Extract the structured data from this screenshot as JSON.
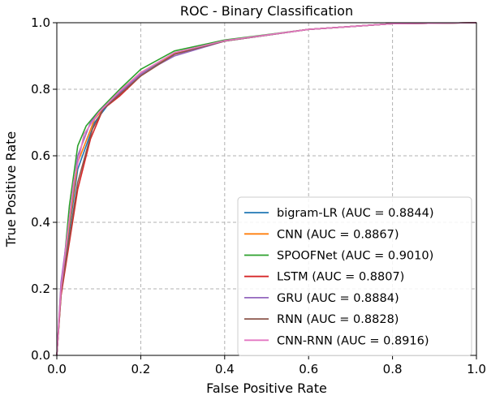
{
  "chart_data": {
    "type": "line",
    "title": "ROC - Binary Classification",
    "xlabel": "False Positive Rate",
    "ylabel": "True Positive Rate",
    "xlim": [
      0.0,
      1.0
    ],
    "ylim": [
      0.0,
      1.0
    ],
    "xticks": [
      "0.0",
      "0.2",
      "0.4",
      "0.6",
      "0.8",
      "1.0"
    ],
    "yticks": [
      "0.0",
      "0.2",
      "0.4",
      "0.6",
      "0.8",
      "1.0"
    ],
    "grid": true,
    "legend_position": "lower-right",
    "series": [
      {
        "name": "bigram-LR (AUC = 0.8844)",
        "color": "#1f77b4",
        "x": [
          0,
          0.01,
          0.05,
          0.09,
          0.12,
          0.15,
          0.2,
          0.28,
          0.4,
          0.6,
          0.8,
          1.0
        ],
        "y": [
          0,
          0.2,
          0.56,
          0.7,
          0.75,
          0.79,
          0.845,
          0.905,
          0.945,
          0.98,
          0.997,
          1.0
        ]
      },
      {
        "name": "CNN (AUC = 0.8867)",
        "color": "#ff7f0e",
        "x": [
          0,
          0.01,
          0.05,
          0.09,
          0.12,
          0.15,
          0.2,
          0.28,
          0.4,
          0.6,
          0.8,
          1.0
        ],
        "y": [
          0,
          0.21,
          0.58,
          0.71,
          0.755,
          0.795,
          0.85,
          0.908,
          0.946,
          0.98,
          0.997,
          1.0
        ]
      },
      {
        "name": "SPOOFNet (AUC = 0.9010)",
        "color": "#2ca02c",
        "x": [
          0,
          0.01,
          0.03,
          0.05,
          0.07,
          0.1,
          0.15,
          0.2,
          0.28,
          0.4,
          0.6,
          0.8,
          1.0
        ],
        "y": [
          0,
          0.18,
          0.45,
          0.63,
          0.69,
          0.735,
          0.8,
          0.86,
          0.915,
          0.948,
          0.98,
          0.997,
          1.0
        ]
      },
      {
        "name": "LSTM (AUC = 0.8807)",
        "color": "#d62728",
        "x": [
          0,
          0.01,
          0.05,
          0.08,
          0.1,
          0.11,
          0.15,
          0.2,
          0.28,
          0.4,
          0.6,
          0.8,
          1.0
        ],
        "y": [
          0,
          0.18,
          0.5,
          0.65,
          0.71,
          0.74,
          0.78,
          0.84,
          0.905,
          0.945,
          0.98,
          0.997,
          1.0
        ]
      },
      {
        "name": "GRU (AUC = 0.8884)",
        "color": "#9467bd",
        "x": [
          0,
          0.01,
          0.05,
          0.08,
          0.11,
          0.15,
          0.2,
          0.28,
          0.4,
          0.6,
          0.8,
          1.0
        ],
        "y": [
          0,
          0.22,
          0.6,
          0.7,
          0.745,
          0.79,
          0.845,
          0.9,
          0.945,
          0.98,
          0.997,
          1.0
        ]
      },
      {
        "name": "RNN (AUC = 0.8828)",
        "color": "#8c564b",
        "x": [
          0,
          0.01,
          0.05,
          0.085,
          0.11,
          0.15,
          0.2,
          0.28,
          0.4,
          0.6,
          0.8,
          1.0
        ],
        "y": [
          0,
          0.19,
          0.52,
          0.68,
          0.74,
          0.785,
          0.84,
          0.905,
          0.945,
          0.98,
          0.997,
          1.0
        ]
      },
      {
        "name": "CNN-RNN (AUC = 0.8916)",
        "color": "#e377c2",
        "x": [
          0,
          0.01,
          0.04,
          0.065,
          0.1,
          0.15,
          0.2,
          0.28,
          0.4,
          0.6,
          0.8,
          1.0
        ],
        "y": [
          0,
          0.2,
          0.52,
          0.665,
          0.73,
          0.795,
          0.85,
          0.91,
          0.946,
          0.98,
          0.997,
          1.0
        ]
      }
    ]
  }
}
